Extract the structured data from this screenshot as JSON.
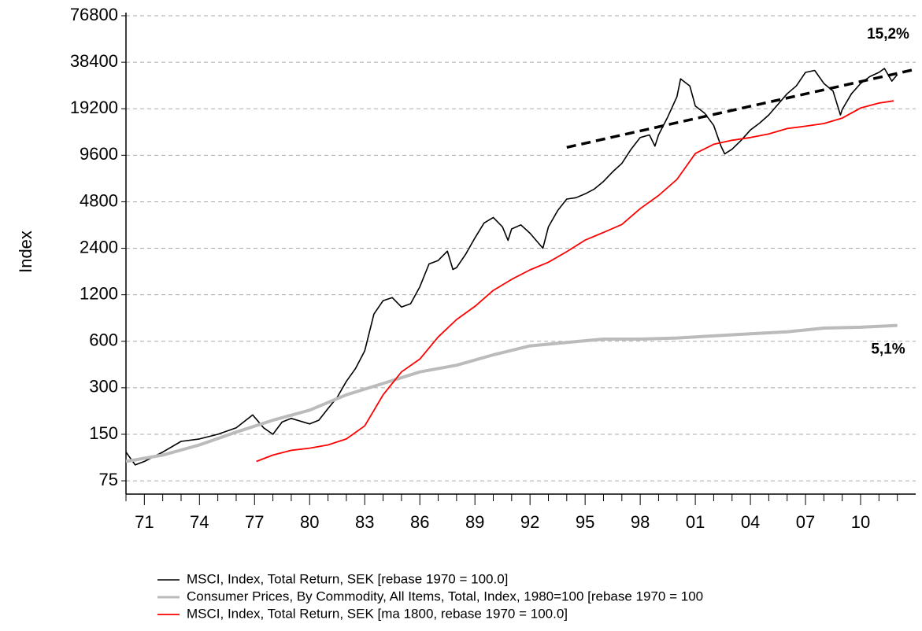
{
  "chart_data": {
    "type": "line",
    "y_label": "Index",
    "log_scale": true,
    "grid": true,
    "xlim": [
      1970,
      2013
    ],
    "ylim": [
      61.5,
      80500
    ],
    "yticks": [
      75,
      150,
      300,
      600,
      1200,
      2400,
      4800,
      9600,
      19200,
      38400,
      76800
    ],
    "xticks": [
      {
        "value": 1971,
        "label": "71"
      },
      {
        "value": 1974,
        "label": "74"
      },
      {
        "value": 1977,
        "label": "77"
      },
      {
        "value": 1980,
        "label": "80"
      },
      {
        "value": 1983,
        "label": "83"
      },
      {
        "value": 1986,
        "label": "86"
      },
      {
        "value": 1989,
        "label": "89"
      },
      {
        "value": 1992,
        "label": "92"
      },
      {
        "value": 1995,
        "label": "95"
      },
      {
        "value": 1998,
        "label": "98"
      },
      {
        "value": 2001,
        "label": "01"
      },
      {
        "value": 2004,
        "label": "04"
      },
      {
        "value": 2007,
        "label": "07"
      },
      {
        "value": 2010,
        "label": "10"
      }
    ],
    "xminorticks": [
      1970,
      1972,
      1973,
      1975,
      1976,
      1978,
      1979,
      1981,
      1982,
      1984,
      1985,
      1987,
      1988,
      1990,
      1991,
      1993,
      1994,
      1996,
      1997,
      1999,
      2000,
      2002,
      2003,
      2005,
      2006,
      2008,
      2009,
      2011,
      2012
    ],
    "series": [
      {
        "name": "MSCI, Index, Total Return, SEK [rebase 1970 = 100.0]",
        "color": "#000000",
        "width": 1.6,
        "x": [
          1970.0,
          1970.5,
          1971,
          1972,
          1973,
          1974,
          1975,
          1976,
          1976.9,
          1977.5,
          1978,
          1978.5,
          1979,
          1980,
          1980.5,
          1981,
          1981.5,
          1982,
          1982.5,
          1983,
          1983.5,
          1984,
          1984.5,
          1985,
          1985.5,
          1986,
          1986.5,
          1987,
          1987.5,
          1987.8,
          1988,
          1988.5,
          1989,
          1989.5,
          1990,
          1990.5,
          1990.8,
          1991,
          1991.5,
          1992,
          1992.7,
          1993,
          1993.5,
          1994,
          1994.5,
          1995,
          1995.5,
          1996,
          1996.5,
          1997,
          1997.5,
          1998,
          1998.5,
          1998.8,
          1999,
          1999.5,
          2000,
          2000.2,
          2000.7,
          2001,
          2001.5,
          2002,
          2002.4,
          2002.6,
          2003,
          2003.5,
          2004,
          2004.5,
          2005,
          2005.5,
          2006,
          2006.5,
          2007,
          2007.5,
          2008,
          2008.5,
          2008.9,
          2009,
          2009.5,
          2010,
          2010.5,
          2011,
          2011.3,
          2011.7,
          2012
        ],
        "values": [
          115,
          95,
          100,
          115,
          135,
          140,
          150,
          165,
          200,
          165,
          150,
          180,
          190,
          175,
          185,
          220,
          260,
          330,
          400,
          520,
          900,
          1100,
          1150,
          1000,
          1050,
          1350,
          1900,
          2000,
          2300,
          1750,
          1800,
          2200,
          2800,
          3500,
          3800,
          3300,
          2700,
          3200,
          3400,
          3000,
          2400,
          3300,
          4200,
          5000,
          5100,
          5400,
          5800,
          6500,
          7500,
          8500,
          10500,
          12500,
          13000,
          11000,
          13000,
          17000,
          23000,
          30000,
          27000,
          20000,
          18000,
          15000,
          11000,
          9800,
          10500,
          12000,
          14000,
          15500,
          17500,
          20500,
          24000,
          27000,
          33000,
          34000,
          28000,
          25000,
          17500,
          19000,
          24000,
          28000,
          31000,
          33000,
          35000,
          29000,
          32000
        ]
      },
      {
        "name": "Consumer Prices, By Commodity, All Items, Total, Index, 1980=100 [rebase 1970 = 100",
        "color": "#bbbbbb",
        "width": 4,
        "x": [
          1970,
          1972,
          1974,
          1976,
          1978,
          1980,
          1982,
          1984,
          1986,
          1988,
          1990,
          1992,
          1994,
          1996,
          1998,
          2000,
          2002,
          2004,
          2006,
          2008,
          2010,
          2012
        ],
        "values": [
          100,
          110,
          128,
          155,
          185,
          215,
          270,
          320,
          380,
          420,
          490,
          560,
          590,
          620,
          620,
          630,
          650,
          670,
          690,
          730,
          740,
          760
        ]
      },
      {
        "name": "MSCI, Index, Total Return, SEK [ma 1800, rebase 1970 = 100.0]",
        "color": "#ff0000",
        "width": 1.8,
        "x": [
          1977.1,
          1978,
          1979,
          1980,
          1981,
          1982,
          1983,
          1984,
          1985,
          1986,
          1987,
          1988,
          1989,
          1990,
          1991,
          1992,
          1993,
          1994,
          1995,
          1996,
          1997,
          1998,
          1999,
          2000,
          2001,
          2002,
          2003,
          2004,
          2005,
          2006,
          2007,
          2008,
          2009,
          2010,
          2011,
          2011.8
        ],
        "values": [
          100,
          110,
          118,
          122,
          128,
          140,
          170,
          270,
          380,
          460,
          640,
          830,
          1010,
          1280,
          1510,
          1740,
          1950,
          2280,
          2710,
          3040,
          3420,
          4330,
          5270,
          6700,
          9860,
          11300,
          12000,
          12500,
          13200,
          14300,
          14800,
          15400,
          16700,
          19400,
          20900,
          21600
        ]
      }
    ],
    "trend": {
      "color": "#000000",
      "x": [
        1994,
        2013
      ],
      "values": [
        10800,
        34600
      ]
    },
    "annotations": [
      {
        "text": "15,2%",
        "x": 2011.5,
        "y": 58000
      },
      {
        "text": "5,1%",
        "x": 2011.5,
        "y": 530
      }
    ]
  }
}
